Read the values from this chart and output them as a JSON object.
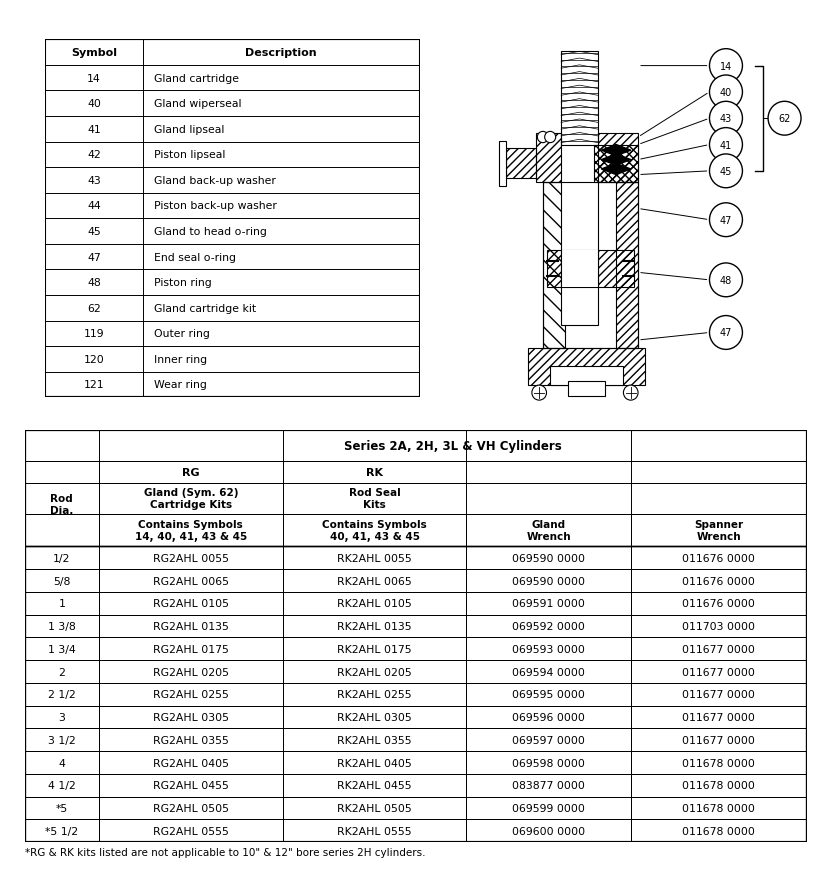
{
  "symbol_table": {
    "headers": [
      "Symbol",
      "Description"
    ],
    "rows": [
      [
        "14",
        "Gland cartridge"
      ],
      [
        "40",
        "Gland wiperseal"
      ],
      [
        "41",
        "Gland lipseal"
      ],
      [
        "42",
        "Piston lipseal"
      ],
      [
        "43",
        "Gland back-up washer"
      ],
      [
        "44",
        "Piston back-up washer"
      ],
      [
        "45",
        "Gland to head o-ring"
      ],
      [
        "47",
        "End seal o-ring"
      ],
      [
        "48",
        "Piston ring"
      ],
      [
        "62",
        "Gland cartridge kit"
      ],
      [
        "119",
        "Outer ring"
      ],
      [
        "120",
        "Inner ring"
      ],
      [
        "121",
        "Wear ring"
      ]
    ]
  },
  "main_table": {
    "title": "Series 2A, 2H, 3L & VH Cylinders",
    "rows": [
      [
        "1/2",
        "RG2AHL 0055",
        "RK2AHL 0055",
        "069590 0000",
        "011676 0000"
      ],
      [
        "5/8",
        "RG2AHL 0065",
        "RK2AHL 0065",
        "069590 0000",
        "011676 0000"
      ],
      [
        "1",
        "RG2AHL 0105",
        "RK2AHL 0105",
        "069591 0000",
        "011676 0000"
      ],
      [
        "1 3/8",
        "RG2AHL 0135",
        "RK2AHL 0135",
        "069592 0000",
        "011703 0000"
      ],
      [
        "1 3/4",
        "RG2AHL 0175",
        "RK2AHL 0175",
        "069593 0000",
        "011677 0000"
      ],
      [
        "2",
        "RG2AHL 0205",
        "RK2AHL 0205",
        "069594 0000",
        "011677 0000"
      ],
      [
        "2 1/2",
        "RG2AHL 0255",
        "RK2AHL 0255",
        "069595 0000",
        "011677 0000"
      ],
      [
        "3",
        "RG2AHL 0305",
        "RK2AHL 0305",
        "069596 0000",
        "011677 0000"
      ],
      [
        "3 1/2",
        "RG2AHL 0355",
        "RK2AHL 0355",
        "069597 0000",
        "011677 0000"
      ],
      [
        "4",
        "RG2AHL 0405",
        "RK2AHL 0405",
        "069598 0000",
        "011678 0000"
      ],
      [
        "4 1/2",
        "RG2AHL 0455",
        "RK2AHL 0455",
        "083877 0000",
        "011678 0000"
      ],
      [
        "*5",
        "RG2AHL 0505",
        "RK2AHL 0505",
        "069599 0000",
        "011678 0000"
      ],
      [
        "*5 1/2",
        "RG2AHL 0555",
        "RK2AHL 0555",
        "069600 0000",
        "011678 0000"
      ]
    ],
    "footnote": "*RG & RK kits listed are not applicable to 10\" & 12\" bore series 2H cylinders."
  }
}
